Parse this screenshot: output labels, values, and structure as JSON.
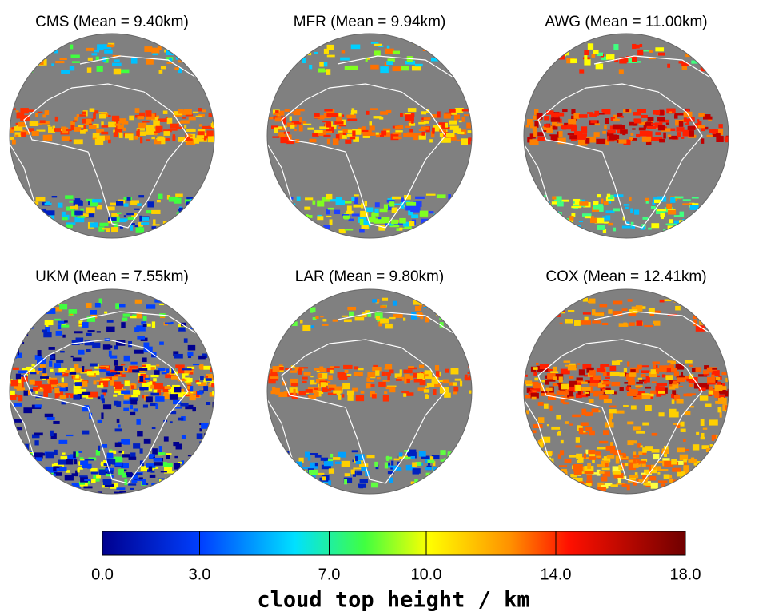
{
  "panels": [
    {
      "title": "CMS (Mean =  9.40km)"
    },
    {
      "title": "MFR (Mean =  9.94km)"
    },
    {
      "title": "AWG (Mean = 11.00km)"
    },
    {
      "title": "UKM (Mean =  7.55km)"
    },
    {
      "title": "LAR (Mean =  9.80km)"
    },
    {
      "title": "COX (Mean = 12.41km)"
    }
  ],
  "colorbar": {
    "label": "cloud top height / km",
    "lim": [
      0,
      18
    ],
    "ticks": [
      {
        "value": 0,
        "label": "0.0"
      },
      {
        "value": 3,
        "label": "3.0"
      },
      {
        "value": 7,
        "label": "7.0"
      },
      {
        "value": 10,
        "label": "10.0"
      },
      {
        "value": 14,
        "label": "14.0"
      },
      {
        "value": 18,
        "label": "18.0"
      }
    ]
  }
}
